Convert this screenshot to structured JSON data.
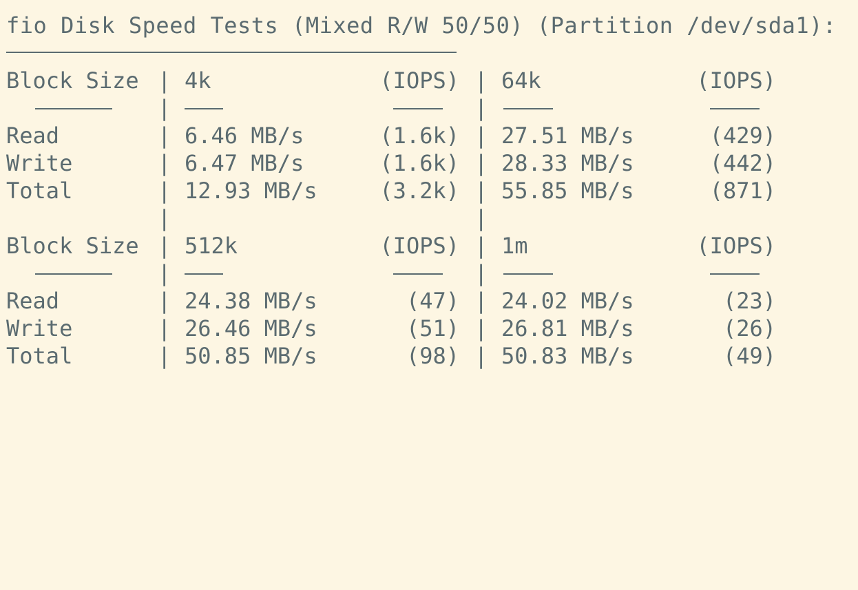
{
  "title": "fio Disk Speed Tests (Mixed R/W 50/50) (Partition /dev/sda1):",
  "separator": "|",
  "tables": [
    {
      "header": {
        "label": "Block Size",
        "size1": "4k",
        "iops1": "(IOPS)",
        "size2": "64k",
        "iops2": "(IOPS)"
      },
      "rows": [
        {
          "label": "Read",
          "v1": "6.46 MB/s",
          "i1": "(1.6k)",
          "v2": "27.51 MB/s",
          "i2": "(429)"
        },
        {
          "label": "Write",
          "v1": "6.47 MB/s",
          "i1": "(1.6k)",
          "v2": "28.33 MB/s",
          "i2": "(442)"
        },
        {
          "label": "Total",
          "v1": "12.93 MB/s",
          "i1": "(3.2k)",
          "v2": "55.85 MB/s",
          "i2": "(871)"
        }
      ]
    },
    {
      "header": {
        "label": "Block Size",
        "size1": "512k",
        "iops1": "(IOPS)",
        "size2": "1m",
        "iops2": "(IOPS)"
      },
      "rows": [
        {
          "label": "Read",
          "v1": "24.38 MB/s",
          "i1": "(47)",
          "v2": "24.02 MB/s",
          "i2": "(23)"
        },
        {
          "label": "Write",
          "v1": "26.46 MB/s",
          "i1": "(51)",
          "v2": "26.81 MB/s",
          "i2": "(26)"
        },
        {
          "label": "Total",
          "v1": "50.85 MB/s",
          "i1": "(98)",
          "v2": "50.83 MB/s",
          "i2": "(49)"
        }
      ]
    }
  ]
}
